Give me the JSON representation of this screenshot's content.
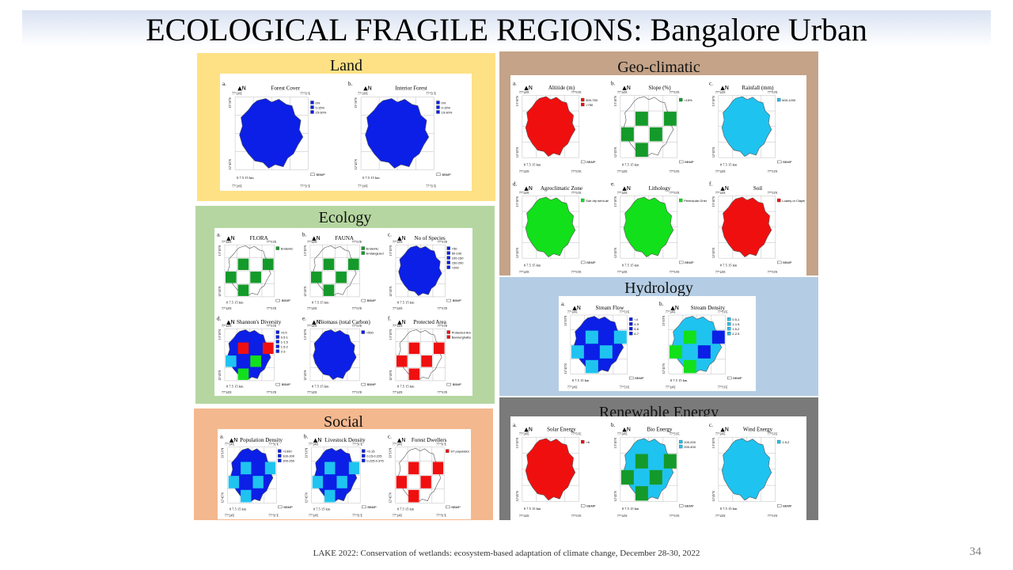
{
  "slide": {
    "title": "ECOLOGICAL FRAGILE REGIONS: Bangalore Urban",
    "footer": "LAKE 2022: Conservation of wetlands: ecosystem-based  adaptation of climate change, December 28-30, 2022",
    "page_number": "34"
  },
  "colors": {
    "land_bg": "#ffe185",
    "geo_bg": "#c4a388",
    "ecology_bg": "#b5d6a0",
    "hydro_bg": "#b4cde4",
    "social_bg": "#f4b88e",
    "renew_bg": "#7a7a7a",
    "blue": "#0b1fe6",
    "light_blue": "#1fc3f0",
    "red": "#f00f0f",
    "green": "#12e01a",
    "dark_green": "#149a2a"
  },
  "panels": {
    "land": {
      "title": "Land",
      "maps": [
        {
          "letter": "a.",
          "title": "Forest Cover",
          "fill": "blue",
          "legend": [
            "0%",
            "0-15%",
            "15-30%"
          ]
        },
        {
          "letter": "b.",
          "title": "Interior Forest",
          "fill": "blue",
          "legend": [
            "0%",
            "0-15%",
            "15-30%"
          ]
        }
      ]
    },
    "geo": {
      "title": "Geo-climatic",
      "maps": [
        {
          "letter": "a.",
          "title": "Altitide (m)",
          "fill": "red",
          "legend": [
            "500-750",
            ">750"
          ]
        },
        {
          "letter": "b.",
          "title": "Slope (%)",
          "fill": "none",
          "legend": [
            "<15%"
          ]
        },
        {
          "letter": "c.",
          "title": "Rainfall (mm)",
          "fill": "light_blue",
          "legend": [
            "600-1200"
          ]
        },
        {
          "letter": "d.",
          "title": "Agroclimatic Zone",
          "fill": "green",
          "legend": [
            "Sub dry semi-arid"
          ]
        },
        {
          "letter": "e.",
          "title": "Lithology",
          "fill": "green",
          "legend": [
            "Peninsular Gneiss"
          ]
        },
        {
          "letter": "f.",
          "title": "Soil",
          "fill": "red",
          "legend": [
            "Loamy or Clayey"
          ]
        }
      ]
    },
    "ecology": {
      "title": "Ecology",
      "maps": [
        {
          "letter": "a.",
          "title": "FLORA",
          "fill": "none",
          "legend": [
            "Endemic"
          ]
        },
        {
          "letter": "b.",
          "title": "FAUNA",
          "fill": "none",
          "legend": [
            "Endemic",
            "Endangered"
          ]
        },
        {
          "letter": "c.",
          "title": "No of Species",
          "fill": "blue",
          "legend": [
            "<50",
            "50-100",
            "100-150",
            "150-200",
            ">200"
          ]
        },
        {
          "letter": "d.",
          "title": "Shannon's Diversity",
          "fill": "mixed",
          "legend": [
            "<0.5",
            "0.5-1",
            "1-1.5",
            "1.5-2",
            "2-3"
          ]
        },
        {
          "letter": "e.",
          "title": "Biomass (total Carbon)",
          "fill": "blue",
          "legend": [
            "<500"
          ]
        },
        {
          "letter": "f.",
          "title": "Protected Area",
          "fill": "none",
          "legend": [
            "Protected Area",
            "Bannerghatta Elephant Park"
          ]
        }
      ]
    },
    "hydro": {
      "title": "Hydrology",
      "maps": [
        {
          "letter": "a.",
          "title": "Stream Flow",
          "fill": "blue",
          "legend": [
            "<4",
            "4-5",
            "5-6",
            "6-7"
          ]
        },
        {
          "letter": "b.",
          "title": "Stream Density",
          "fill": "light_blue",
          "legend": [
            "0.5-1",
            "1-1.5",
            "1.5-2",
            "2-2.5"
          ]
        }
      ]
    },
    "social": {
      "title": "Social",
      "maps": [
        {
          "letter": "a.",
          "title": "Population Density",
          "fill": "blue",
          "legend": [
            "<1000",
            "100-200",
            "200-250"
          ]
        },
        {
          "letter": "b.",
          "title": "Livestock Density",
          "fill": "blue",
          "legend": [
            "<0.15",
            "0.15-0.225",
            "0.225-0.375"
          ]
        },
        {
          "letter": "c.",
          "title": "Forest Dwellers",
          "fill": "none",
          "legend": [
            "ST population"
          ]
        }
      ]
    },
    "renew": {
      "title": "Renewable Energy",
      "maps": [
        {
          "letter": "a.",
          "title": "Solar Energy",
          "fill": "red",
          "legend": [
            ">6"
          ]
        },
        {
          "letter": "b.",
          "title": "Bio Energy",
          "fill": "light_blue",
          "legend": [
            "100-200",
            "200-400"
          ]
        },
        {
          "letter": "c.",
          "title": "Wind Energy",
          "fill": "light_blue",
          "legend": [
            "1.5-2"
          ]
        }
      ]
    }
  },
  "map_labels": {
    "lon_west": "77°24'E",
    "lon_east": "77°51'E",
    "lat_north": "13°10'N",
    "lat_south": "12°45'N",
    "scale": "0   7.5   15 km",
    "boundary_legend": "BBMP",
    "north_arrow": "N"
  }
}
